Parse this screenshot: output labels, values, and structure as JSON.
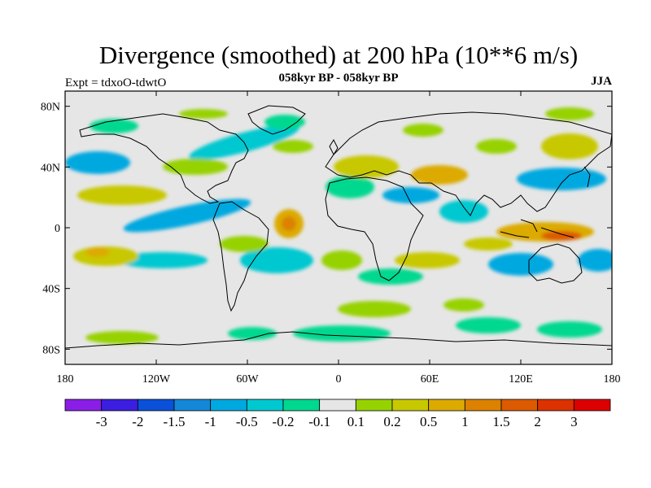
{
  "title": "Divergence (smoothed) at 200 hPa (10**6 m/s)",
  "expt_label": "Expt = tdxoO-tdwtO",
  "period_label": "058kyr BP - 058kyr BP",
  "season_label": "JJA",
  "lat_ticks": [
    "80N",
    "40N",
    "0",
    "40S",
    "80S"
  ],
  "lon_ticks": [
    "180",
    "120W",
    "60W",
    "0",
    "60E",
    "120E",
    "180"
  ],
  "colorbar": {
    "labels": [
      "-3",
      "-2",
      "-1.5",
      "-1",
      "-0.5",
      "-0.2",
      "-0.1",
      "0.1",
      "0.2",
      "0.5",
      "1",
      "1.5",
      "2",
      "3"
    ],
    "colors": [
      "#8a1ee6",
      "#3c1ee0",
      "#0a50d8",
      "#1488d8",
      "#00a8e0",
      "#00c8d0",
      "#00d890",
      "#e6e6e6",
      "#96d200",
      "#c8c800",
      "#dcaa00",
      "#dc8200",
      "#dc5a00",
      "#dc3200",
      "#dc0000"
    ]
  },
  "chart_data": {
    "type": "heatmap",
    "title": "Divergence (smoothed) at 200 hPa (10**6 m/s)",
    "xlabel": "",
    "ylabel": "",
    "x_range": [
      -180,
      180
    ],
    "y_range": [
      -90,
      90
    ],
    "x_ticks": [
      -180,
      -120,
      -60,
      0,
      60,
      120,
      180
    ],
    "y_ticks": [
      80,
      40,
      0,
      -40,
      -80
    ],
    "levels": [
      -3,
      -2,
      -1.5,
      -1,
      -0.5,
      -0.2,
      -0.1,
      0.1,
      0.2,
      0.5,
      1,
      1.5,
      2,
      3
    ],
    "projection": "cylindrical equidistant",
    "coastlines": true
  }
}
